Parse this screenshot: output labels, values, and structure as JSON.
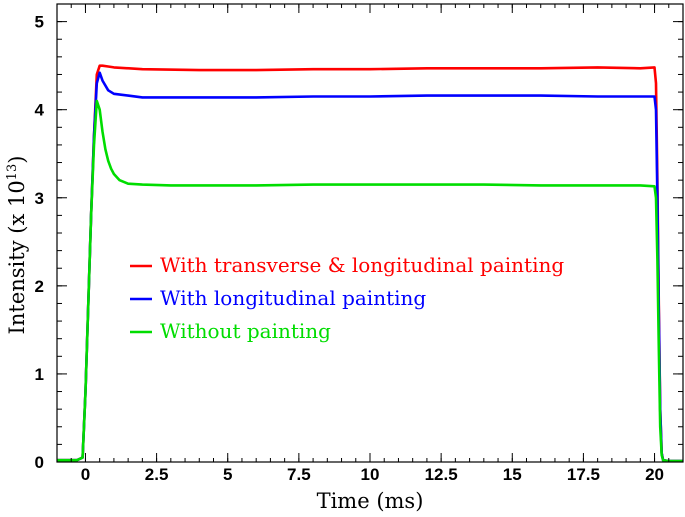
{
  "chart_data": {
    "type": "line",
    "title": "",
    "xlabel": "Time (ms)",
    "ylabel_main": "Intensity (x 10",
    "ylabel_exp": "13",
    "ylabel_close": ")",
    "xlim": [
      -1,
      21
    ],
    "ylim": [
      0,
      5.2
    ],
    "x_ticks": [
      0,
      2.5,
      5,
      7.5,
      10,
      12.5,
      15,
      17.5,
      20
    ],
    "x_tick_labels": [
      "0",
      "2.5",
      "5",
      "7.5",
      "10",
      "12.5",
      "15",
      "17.5",
      "20"
    ],
    "y_ticks": [
      0,
      1,
      2,
      3,
      4,
      5
    ],
    "y_tick_labels": [
      "0",
      "1",
      "2",
      "3",
      "4",
      "5"
    ],
    "grid": false,
    "legend_position": "center-left",
    "series": [
      {
        "name": "With transverse & longitudinal painting",
        "color": "#ff0000",
        "x": [
          -1,
          -0.3,
          -0.1,
          0,
          0.1,
          0.2,
          0.3,
          0.4,
          0.5,
          0.6,
          0.8,
          1.0,
          2,
          4,
          6,
          8,
          10,
          12,
          14,
          16,
          18,
          19.5,
          20,
          20.05,
          20.1,
          20.15,
          20.2,
          20.25,
          20.3,
          20.5,
          21
        ],
        "y": [
          0.02,
          0.02,
          0.05,
          0.8,
          1.8,
          2.8,
          3.7,
          4.4,
          4.5,
          4.5,
          4.49,
          4.48,
          4.46,
          4.45,
          4.45,
          4.46,
          4.46,
          4.47,
          4.47,
          4.47,
          4.48,
          4.47,
          4.48,
          4.3,
          3.2,
          1.8,
          0.6,
          0.1,
          0.02,
          0.01,
          0.01
        ]
      },
      {
        "name": "With longitudinal painting",
        "color": "#0000ff",
        "x": [
          -1,
          -0.3,
          -0.1,
          0,
          0.1,
          0.2,
          0.3,
          0.4,
          0.5,
          0.6,
          0.8,
          1.0,
          1.5,
          2,
          4,
          6,
          8,
          10,
          12,
          14,
          16,
          18,
          19.5,
          20,
          20.05,
          20.1,
          20.15,
          20.2,
          20.25,
          20.3,
          20.5,
          21
        ],
        "y": [
          0.02,
          0.02,
          0.05,
          0.8,
          1.8,
          2.8,
          3.7,
          4.3,
          4.42,
          4.33,
          4.22,
          4.18,
          4.16,
          4.14,
          4.14,
          4.14,
          4.15,
          4.15,
          4.16,
          4.16,
          4.16,
          4.15,
          4.15,
          4.15,
          4.0,
          3.0,
          1.7,
          0.6,
          0.1,
          0.02,
          0.01,
          0.01
        ]
      },
      {
        "name": "Without painting",
        "color": "#00dd00",
        "x": [
          -1,
          -0.3,
          -0.1,
          0,
          0.1,
          0.2,
          0.3,
          0.4,
          0.5,
          0.6,
          0.7,
          0.8,
          0.9,
          1.0,
          1.2,
          1.5,
          2,
          3,
          4,
          6,
          8,
          10,
          12,
          14,
          16,
          18,
          19.5,
          20,
          20.05,
          20.1,
          20.15,
          20.2,
          20.25,
          20.3,
          20.5,
          21
        ],
        "y": [
          0.02,
          0.02,
          0.05,
          0.8,
          1.8,
          2.8,
          3.6,
          4.1,
          4.0,
          3.75,
          3.55,
          3.42,
          3.33,
          3.27,
          3.2,
          3.16,
          3.15,
          3.14,
          3.14,
          3.14,
          3.15,
          3.15,
          3.15,
          3.15,
          3.14,
          3.14,
          3.14,
          3.13,
          3.0,
          2.3,
          1.3,
          0.4,
          0.08,
          0.02,
          0.01,
          0.01
        ]
      }
    ]
  }
}
